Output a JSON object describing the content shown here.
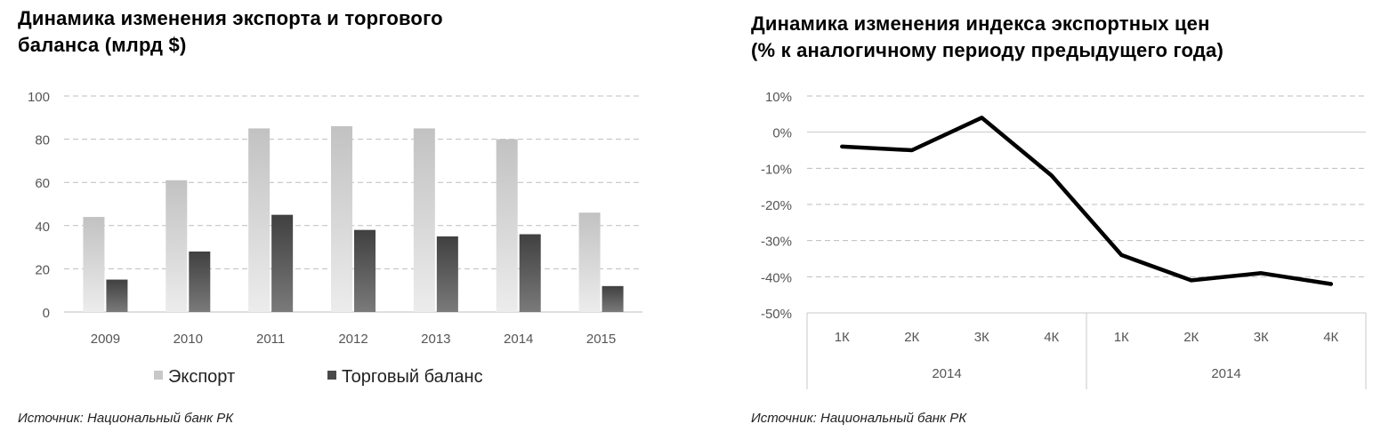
{
  "chart_data": [
    {
      "type": "bar",
      "title": [
        "Динамика изменения экспорта и торгового",
        "баланса (млрд $)"
      ],
      "categories": [
        "2009",
        "2010",
        "2011",
        "2012",
        "2013",
        "2014",
        "2015"
      ],
      "series": [
        {
          "name": "Экспорт",
          "values": [
            44,
            61,
            85,
            86,
            85,
            80,
            46
          ],
          "color": "#c8c8c8"
        },
        {
          "name": "Торговый баланс",
          "values": [
            15,
            28,
            45,
            38,
            35,
            36,
            12
          ],
          "color": "#4a4a4a"
        }
      ],
      "ylim": [
        0,
        100
      ],
      "yticks": [
        "0",
        "20",
        "40",
        "60",
        "80",
        "100"
      ],
      "grid": true,
      "legend_position": "bottom",
      "source": "Источник: Национальный банк РК"
    },
    {
      "type": "line",
      "title": [
        "Динамика изменения индекса экспортных цен",
        "(% к аналогичному периоду предыдущего года)"
      ],
      "categories": [
        "1К",
        "2К",
        "3К",
        "4К",
        "1К",
        "2К",
        "3К",
        "4К"
      ],
      "groups": [
        "2014",
        "2014"
      ],
      "series": [
        {
          "values": [
            -4,
            -5,
            4,
            -12,
            -34,
            -41,
            -39,
            -42
          ],
          "color": "#000000"
        }
      ],
      "ylim": [
        -50,
        10
      ],
      "yticks": [
        "10%",
        "0%",
        "-10%",
        "-20%",
        "-30%",
        "-40%",
        "-50%"
      ],
      "grid": true,
      "source": "Источник: Национальный банк РК"
    }
  ]
}
